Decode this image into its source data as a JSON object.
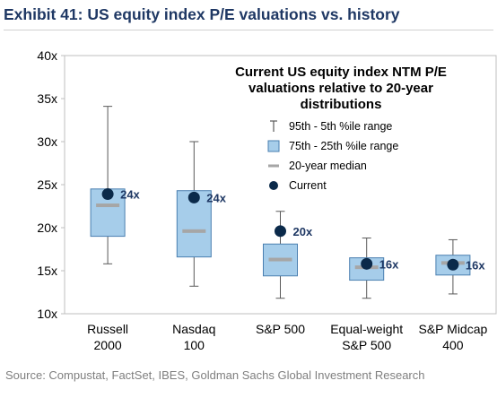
{
  "header": {
    "title": "Exhibit 41: US equity index P/E valuations vs. history"
  },
  "footer": {
    "source": "Source: Compustat, FactSet, IBES, Goldman Sachs Global Investment Research"
  },
  "legend": {
    "title": "Current US equity index NTM P/E valuations relative to 20-year distributions",
    "items": [
      {
        "label": "95th - 5th %ile range",
        "symbol": "whisker-icon"
      },
      {
        "label": "75th - 25th %ile range",
        "symbol": "box-icon"
      },
      {
        "label": "20-year median",
        "symbol": "median-dash-icon"
      },
      {
        "label": "Current",
        "symbol": "current-dot-icon"
      }
    ]
  },
  "colors": {
    "box_fill": "#a6cdea",
    "box_stroke": "#4a7fb0",
    "median": "#a6a6a6",
    "current": "#0b2a4a",
    "whisker": "#595959",
    "axis": "#bfbfbf"
  },
  "chart_data": {
    "type": "box",
    "title": "",
    "xlabel": "",
    "ylabel": "",
    "ylim": [
      10,
      40
    ],
    "yticks": [
      10,
      15,
      20,
      25,
      30,
      35,
      40
    ],
    "ytick_labels": [
      "10x",
      "15x",
      "20x",
      "25x",
      "30x",
      "35x",
      "40x"
    ],
    "categories": [
      {
        "line1": "Russell",
        "line2": "2000"
      },
      {
        "line1": "Nasdaq",
        "line2": "100"
      },
      {
        "line1": "S&P 500",
        "line2": ""
      },
      {
        "line1": "Equal-weight",
        "line2": "S&P 500"
      },
      {
        "line1": "S&P Midcap",
        "line2": "400"
      }
    ],
    "series": [
      {
        "p5": 15.8,
        "p25": 19.0,
        "median": 22.6,
        "p75": 24.5,
        "p95": 34.1,
        "current": 23.9,
        "label": "24x"
      },
      {
        "p5": 13.2,
        "p25": 16.6,
        "median": 19.6,
        "p75": 24.3,
        "p95": 30.0,
        "current": 23.5,
        "label": "24x"
      },
      {
        "p5": 11.8,
        "p25": 14.4,
        "median": 16.3,
        "p75": 18.1,
        "p95": 21.9,
        "current": 19.6,
        "label": "20x"
      },
      {
        "p5": 11.8,
        "p25": 13.9,
        "median": 15.4,
        "p75": 16.5,
        "p95": 18.8,
        "current": 15.8,
        "label": "16x"
      },
      {
        "p5": 12.3,
        "p25": 14.5,
        "median": 15.9,
        "p75": 16.8,
        "p95": 18.6,
        "current": 15.7,
        "label": "16x"
      }
    ]
  }
}
